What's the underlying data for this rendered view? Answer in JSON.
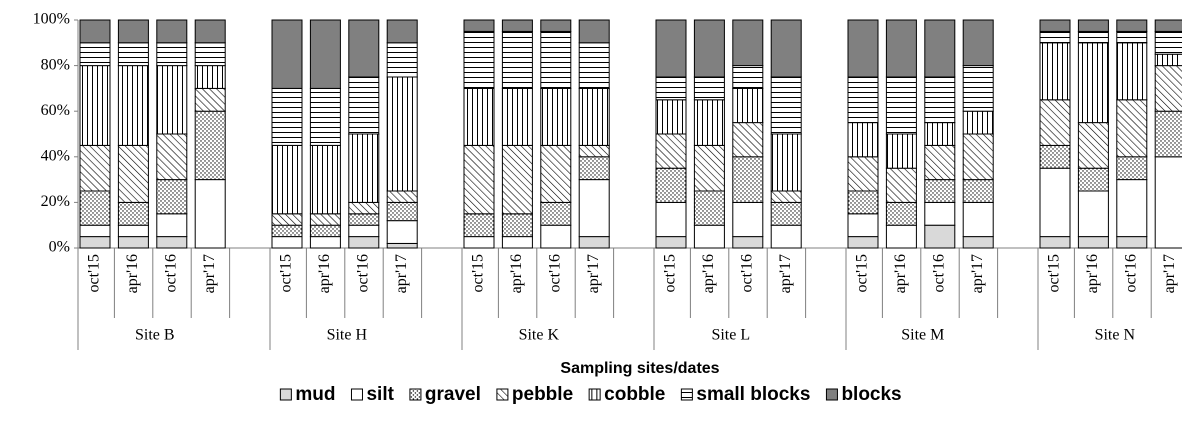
{
  "chart_data": {
    "type": "stacked-bar",
    "x_label": "Sampling sites/dates",
    "groups": [
      {
        "name": "Site B",
        "categories": [
          "oct'15",
          "apr'16",
          "oct'16",
          "apr'17"
        ]
      },
      {
        "name": "Site H",
        "categories": [
          "oct'15",
          "apr'16",
          "oct'16",
          "apr'17"
        ]
      },
      {
        "name": "Site K",
        "categories": [
          "oct'15",
          "apr'16",
          "oct'16",
          "apr'17"
        ]
      },
      {
        "name": "Site L",
        "categories": [
          "oct'15",
          "apr'16",
          "oct'16",
          "apr'17"
        ]
      },
      {
        "name": "Site M",
        "categories": [
          "oct'15",
          "apr'16",
          "oct'16",
          "apr'17"
        ]
      },
      {
        "name": "Site N",
        "categories": [
          "oct'15",
          "apr'16",
          "oct'16",
          "apr'17"
        ]
      }
    ],
    "series": [
      {
        "name": "mud",
        "color": "#d9d9d9",
        "pattern": "solid",
        "values": [
          5,
          5,
          5,
          0,
          0,
          0,
          5,
          2,
          0,
          0,
          0,
          5,
          5,
          0,
          5,
          0,
          5,
          0,
          10,
          5,
          5,
          5,
          5,
          0
        ]
      },
      {
        "name": "silt",
        "color": "#ffffff",
        "pattern": "solid",
        "values": [
          5,
          5,
          10,
          30,
          5,
          5,
          5,
          10,
          5,
          5,
          10,
          25,
          15,
          10,
          15,
          10,
          10,
          10,
          10,
          15,
          30,
          20,
          25,
          40
        ]
      },
      {
        "name": "gravel",
        "color": "#ffffff",
        "pattern": "dots",
        "values": [
          15,
          10,
          15,
          30,
          5,
          5,
          5,
          8,
          10,
          10,
          10,
          10,
          15,
          15,
          20,
          10,
          10,
          10,
          10,
          10,
          10,
          10,
          10,
          20
        ]
      },
      {
        "name": "pebble",
        "color": "#ffffff",
        "pattern": "diagonal",
        "values": [
          20,
          25,
          20,
          10,
          5,
          5,
          5,
          5,
          30,
          30,
          25,
          5,
          15,
          20,
          15,
          5,
          15,
          15,
          15,
          20,
          20,
          20,
          25,
          20
        ]
      },
      {
        "name": "cobble",
        "color": "#ffffff",
        "pattern": "vertical",
        "values": [
          35,
          35,
          30,
          10,
          30,
          30,
          30,
          50,
          25,
          25,
          25,
          25,
          15,
          20,
          15,
          25,
          15,
          15,
          10,
          10,
          25,
          35,
          25,
          5
        ]
      },
      {
        "name": "small blocks",
        "color": "#ffffff",
        "pattern": "horizontal",
        "values": [
          10,
          10,
          10,
          10,
          25,
          25,
          25,
          15,
          25,
          25,
          25,
          20,
          10,
          10,
          10,
          25,
          20,
          25,
          20,
          20,
          5,
          5,
          5,
          10
        ]
      },
      {
        "name": "blocks",
        "color": "#808080",
        "pattern": "solid",
        "values": [
          10,
          10,
          10,
          10,
          30,
          30,
          25,
          10,
          5,
          5,
          5,
          10,
          25,
          25,
          20,
          25,
          25,
          25,
          25,
          20,
          5,
          5,
          5,
          5
        ]
      }
    ],
    "ylim": [
      0,
      100
    ],
    "yticks": [
      {
        "value": 0,
        "label": "0%"
      },
      {
        "value": 20,
        "label": "20%"
      },
      {
        "value": 40,
        "label": "40%"
      },
      {
        "value": 60,
        "label": "60%"
      },
      {
        "value": 80,
        "label": "80%"
      },
      {
        "value": 100,
        "label": "100%"
      }
    ],
    "legend": "bottom"
  }
}
